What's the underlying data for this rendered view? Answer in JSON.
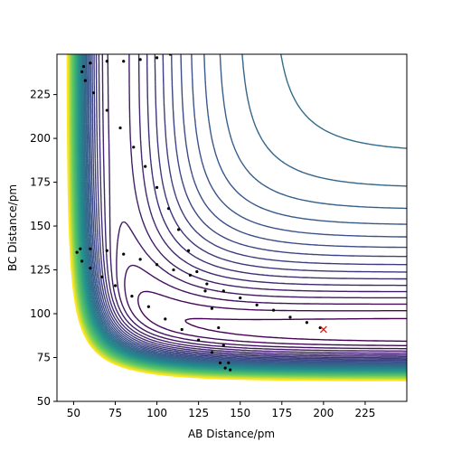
{
  "chart_data": {
    "type": "contour",
    "x_label": "AB Distance/pm",
    "y_label": "BC Distance/pm",
    "xlim": [
      40,
      250
    ],
    "ylim": [
      50,
      248
    ],
    "xticks": [
      50,
      75,
      100,
      125,
      150,
      175,
      200,
      225
    ],
    "yticks": [
      50,
      75,
      100,
      125,
      150,
      175,
      200,
      225
    ],
    "trajectory": {
      "color": "#000000",
      "x": [
        198,
        190,
        180,
        170,
        160,
        150,
        140,
        130,
        120,
        110,
        100,
        90,
        80,
        70,
        60,
        54,
        52,
        55,
        60,
        67,
        75,
        85,
        95,
        105,
        115,
        125,
        133,
        138,
        141,
        144,
        143,
        140,
        137,
        133,
        129,
        124,
        119,
        113,
        107,
        100,
        93,
        86,
        78,
        70,
        62,
        57,
        55,
        56,
        60,
        70,
        80,
        90,
        100,
        108
      ],
      "y": [
        92,
        95,
        98,
        102,
        105,
        109,
        113,
        117,
        122,
        125,
        128,
        131,
        134,
        136,
        137,
        137,
        135,
        130,
        126,
        121,
        116,
        110,
        104,
        97,
        91,
        85,
        78,
        72,
        69,
        68,
        72,
        82,
        92,
        103,
        113,
        124,
        136,
        148,
        160,
        172,
        184,
        195,
        206,
        216,
        226,
        233,
        238,
        241,
        243,
        244,
        244,
        245,
        246,
        248
      ]
    },
    "marker": {
      "color": "#ff0000",
      "x": 200,
      "y": 91
    }
  }
}
